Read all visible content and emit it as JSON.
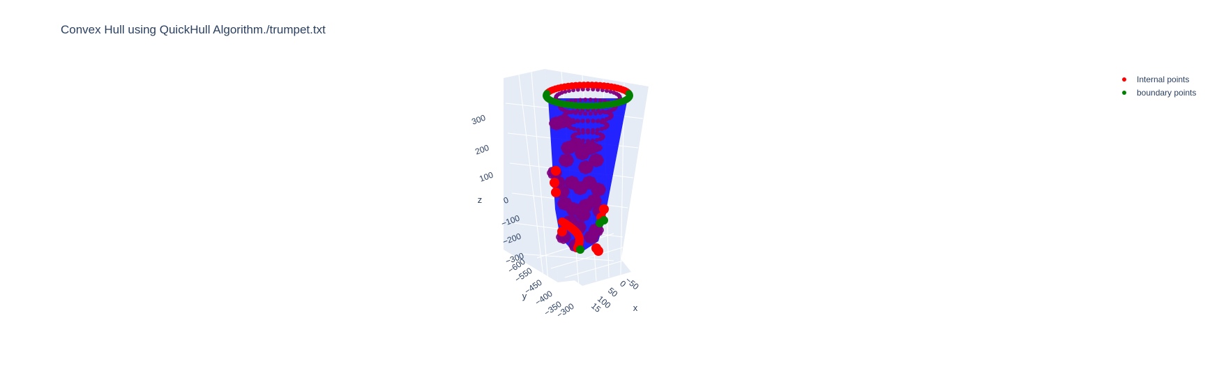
{
  "chart_data": {
    "type": "scatter",
    "title": "Convex Hull using QuickHull Algorithm./trumpet.txt",
    "axes": {
      "x": {
        "label": "x",
        "ticks": [
          "−50",
          "0",
          "50",
          "100",
          "15"
        ]
      },
      "y": {
        "label": "y",
        "ticks": [
          "−600",
          "−550",
          "−450",
          "−400",
          "−350",
          "−300"
        ]
      },
      "z": {
        "label": "z",
        "ticks": [
          "300",
          "200",
          "100",
          "0",
          "−100",
          "−200",
          "−300"
        ]
      }
    },
    "series": [
      {
        "name": "Internal points",
        "color": "#ff0000"
      },
      {
        "name": "boundary points",
        "color": "#008000"
      }
    ],
    "hull_mesh_color": "#0000ff",
    "background_color": "#e5ecf6",
    "grid": true,
    "legend_position": "top-right"
  }
}
